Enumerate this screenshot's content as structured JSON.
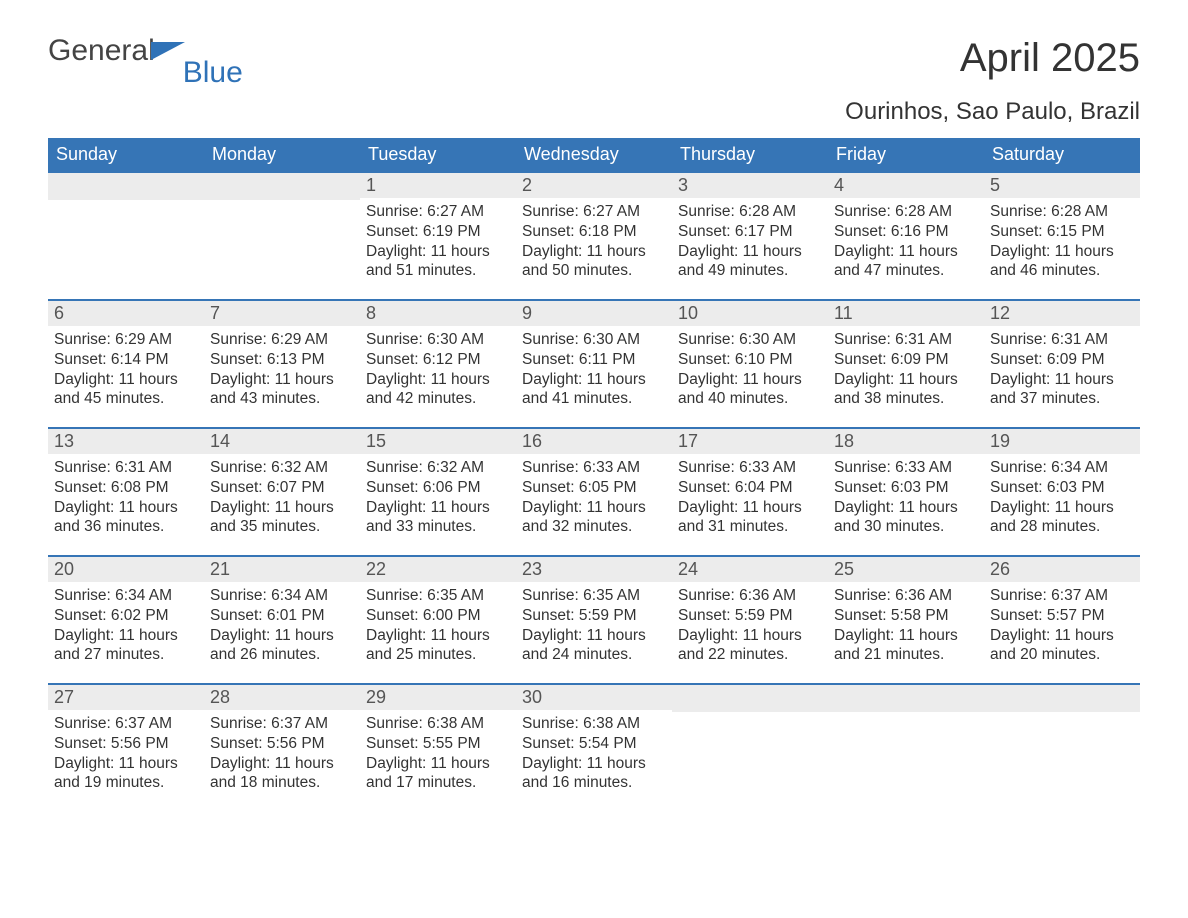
{
  "logo": {
    "text1": "General",
    "text2": "Blue"
  },
  "header": {
    "title": "April 2025",
    "location": "Ourinhos, Sao Paulo, Brazil"
  },
  "calendar": {
    "brand_color": "#3675b6",
    "dayname_bg": "#3675b6",
    "daynum_bg": "#ececec",
    "text_color": "#333333",
    "columns": [
      "Sunday",
      "Monday",
      "Tuesday",
      "Wednesday",
      "Thursday",
      "Friday",
      "Saturday"
    ],
    "weeks": [
      [
        null,
        null,
        {
          "n": "1",
          "sunrise": "6:27 AM",
          "sunset": "6:19 PM",
          "daylight": "11 hours and 51 minutes."
        },
        {
          "n": "2",
          "sunrise": "6:27 AM",
          "sunset": "6:18 PM",
          "daylight": "11 hours and 50 minutes."
        },
        {
          "n": "3",
          "sunrise": "6:28 AM",
          "sunset": "6:17 PM",
          "daylight": "11 hours and 49 minutes."
        },
        {
          "n": "4",
          "sunrise": "6:28 AM",
          "sunset": "6:16 PM",
          "daylight": "11 hours and 47 minutes."
        },
        {
          "n": "5",
          "sunrise": "6:28 AM",
          "sunset": "6:15 PM",
          "daylight": "11 hours and 46 minutes."
        }
      ],
      [
        {
          "n": "6",
          "sunrise": "6:29 AM",
          "sunset": "6:14 PM",
          "daylight": "11 hours and 45 minutes."
        },
        {
          "n": "7",
          "sunrise": "6:29 AM",
          "sunset": "6:13 PM",
          "daylight": "11 hours and 43 minutes."
        },
        {
          "n": "8",
          "sunrise": "6:30 AM",
          "sunset": "6:12 PM",
          "daylight": "11 hours and 42 minutes."
        },
        {
          "n": "9",
          "sunrise": "6:30 AM",
          "sunset": "6:11 PM",
          "daylight": "11 hours and 41 minutes."
        },
        {
          "n": "10",
          "sunrise": "6:30 AM",
          "sunset": "6:10 PM",
          "daylight": "11 hours and 40 minutes."
        },
        {
          "n": "11",
          "sunrise": "6:31 AM",
          "sunset": "6:09 PM",
          "daylight": "11 hours and 38 minutes."
        },
        {
          "n": "12",
          "sunrise": "6:31 AM",
          "sunset": "6:09 PM",
          "daylight": "11 hours and 37 minutes."
        }
      ],
      [
        {
          "n": "13",
          "sunrise": "6:31 AM",
          "sunset": "6:08 PM",
          "daylight": "11 hours and 36 minutes."
        },
        {
          "n": "14",
          "sunrise": "6:32 AM",
          "sunset": "6:07 PM",
          "daylight": "11 hours and 35 minutes."
        },
        {
          "n": "15",
          "sunrise": "6:32 AM",
          "sunset": "6:06 PM",
          "daylight": "11 hours and 33 minutes."
        },
        {
          "n": "16",
          "sunrise": "6:33 AM",
          "sunset": "6:05 PM",
          "daylight": "11 hours and 32 minutes."
        },
        {
          "n": "17",
          "sunrise": "6:33 AM",
          "sunset": "6:04 PM",
          "daylight": "11 hours and 31 minutes."
        },
        {
          "n": "18",
          "sunrise": "6:33 AM",
          "sunset": "6:03 PM",
          "daylight": "11 hours and 30 minutes."
        },
        {
          "n": "19",
          "sunrise": "6:34 AM",
          "sunset": "6:03 PM",
          "daylight": "11 hours and 28 minutes."
        }
      ],
      [
        {
          "n": "20",
          "sunrise": "6:34 AM",
          "sunset": "6:02 PM",
          "daylight": "11 hours and 27 minutes."
        },
        {
          "n": "21",
          "sunrise": "6:34 AM",
          "sunset": "6:01 PM",
          "daylight": "11 hours and 26 minutes."
        },
        {
          "n": "22",
          "sunrise": "6:35 AM",
          "sunset": "6:00 PM",
          "daylight": "11 hours and 25 minutes."
        },
        {
          "n": "23",
          "sunrise": "6:35 AM",
          "sunset": "5:59 PM",
          "daylight": "11 hours and 24 minutes."
        },
        {
          "n": "24",
          "sunrise": "6:36 AM",
          "sunset": "5:59 PM",
          "daylight": "11 hours and 22 minutes."
        },
        {
          "n": "25",
          "sunrise": "6:36 AM",
          "sunset": "5:58 PM",
          "daylight": "11 hours and 21 minutes."
        },
        {
          "n": "26",
          "sunrise": "6:37 AM",
          "sunset": "5:57 PM",
          "daylight": "11 hours and 20 minutes."
        }
      ],
      [
        {
          "n": "27",
          "sunrise": "6:37 AM",
          "sunset": "5:56 PM",
          "daylight": "11 hours and 19 minutes."
        },
        {
          "n": "28",
          "sunrise": "6:37 AM",
          "sunset": "5:56 PM",
          "daylight": "11 hours and 18 minutes."
        },
        {
          "n": "29",
          "sunrise": "6:38 AM",
          "sunset": "5:55 PM",
          "daylight": "11 hours and 17 minutes."
        },
        {
          "n": "30",
          "sunrise": "6:38 AM",
          "sunset": "5:54 PM",
          "daylight": "11 hours and 16 minutes."
        },
        null,
        null,
        null
      ]
    ],
    "labels": {
      "sunrise": "Sunrise: ",
      "sunset": "Sunset: ",
      "daylight": "Daylight: "
    }
  }
}
